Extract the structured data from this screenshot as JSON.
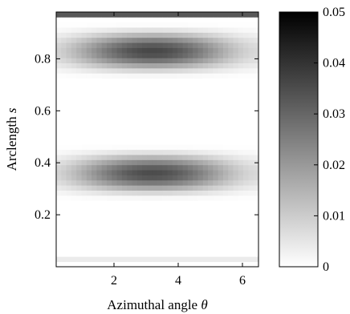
{
  "chart_data": {
    "type": "heatmap",
    "title": "",
    "xlabel": "Azimuthal angle θ",
    "xlabel_text": "Azimuthal angle ",
    "xlabel_symbol": "θ",
    "ylabel": "Arclength s",
    "ylabel_text": "Arclength ",
    "ylabel_symbol": "s",
    "xlim": [
      0.2,
      6.5
    ],
    "ylim": [
      0,
      0.98
    ],
    "x_ticks": [
      2,
      4,
      6
    ],
    "x_tick_labels": [
      "2",
      "4",
      "6"
    ],
    "y_ticks": [
      0.2,
      0.4,
      0.6,
      0.8
    ],
    "y_tick_labels": [
      "0.2",
      "0.4",
      "0.6",
      "0.8"
    ],
    "colorbar": {
      "range": [
        0,
        0.05
      ],
      "ticks": [
        0,
        0.01,
        0.02,
        0.03,
        0.04,
        0.05
      ],
      "tick_labels": [
        "0",
        "0.01",
        "0.02",
        "0.03",
        "0.04",
        "0.05"
      ],
      "colormap": "white-to-black"
    },
    "features": [
      {
        "description_value": "peak band",
        "theta_center": 3.2,
        "s_center": 0.83,
        "s_halfwidth": 0.11,
        "max_value": 0.036
      },
      {
        "description_value": "peak band",
        "theta_center": 3.2,
        "s_center": 0.36,
        "s_halfwidth": 0.11,
        "max_value": 0.035
      },
      {
        "description_value": "edge band",
        "s_center": 0.975,
        "s_halfwidth": 0.012,
        "max_value": 0.05
      },
      {
        "description_value": "edge band",
        "s_center": 0.03,
        "s_halfwidth": 0.02,
        "max_value": 0.004
      }
    ],
    "grid": false,
    "legend": "colorbar-right"
  }
}
